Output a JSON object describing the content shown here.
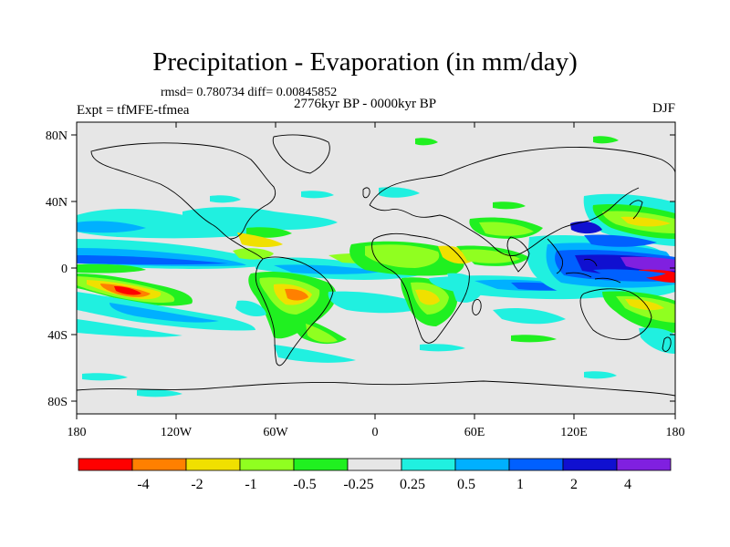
{
  "title": "Precipitation - Evaporation (in mm/day)",
  "stats": "rmsd= 0.780734 diff= 0.00845852",
  "period": "2776kyr BP - 0000kyr BP",
  "experiment": "Expt = tfMFE-tfmea",
  "season": "DJF",
  "lat_labels": [
    "80N",
    "40N",
    "0",
    "40S",
    "80S"
  ],
  "lon_labels": [
    "180",
    "120W",
    "60W",
    "0",
    "60E",
    "120E",
    "180"
  ],
  "colorbar": {
    "colors": [
      "#ff0000",
      "#ff8000",
      "#f0e000",
      "#90ff20",
      "#20f020",
      "#e6e6e6",
      "#20f0e0",
      "#00b0ff",
      "#0060ff",
      "#1010d0",
      "#8020e0"
    ],
    "labels": [
      "-4",
      "-2",
      "-1",
      "-0.5",
      "-0.25",
      "0.25",
      "0.5",
      "1",
      "2",
      "4"
    ]
  }
}
